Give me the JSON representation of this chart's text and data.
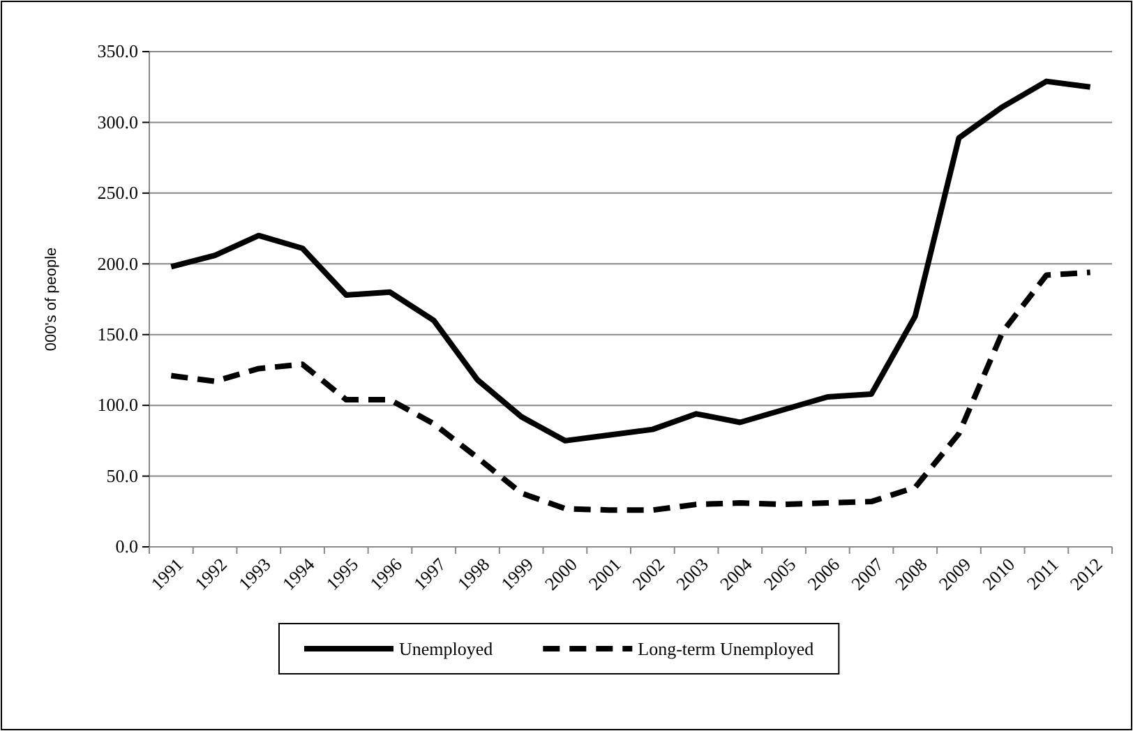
{
  "chart_data": {
    "type": "line",
    "ylabel": "000's of people",
    "categories": [
      "1991",
      "1992",
      "1993",
      "1994",
      "1995",
      "1996",
      "1997",
      "1998",
      "1999",
      "2000",
      "2001",
      "2002",
      "2003",
      "2004",
      "2005",
      "2006",
      "2007",
      "2008",
      "2009",
      "2010",
      "2011",
      "2012"
    ],
    "series": [
      {
        "name": "Unemployed",
        "color": "#000000",
        "line_style": "solid",
        "values": [
          198,
          206,
          220,
          211,
          178,
          180,
          160,
          118,
          92,
          75,
          79,
          83,
          94,
          88,
          97,
          106,
          108,
          163,
          289,
          311,
          329,
          325
        ]
      },
      {
        "name": "Long-term Unemployed",
        "color": "#000000",
        "line_style": "dashed",
        "values": [
          121,
          117,
          126,
          129,
          104,
          104,
          87,
          63,
          38,
          27,
          26,
          26,
          30,
          31,
          30,
          31,
          32,
          42,
          80,
          152,
          192,
          194
        ]
      }
    ],
    "ylim": [
      0,
      350
    ],
    "yticks": [
      {
        "value": 0,
        "label": "0.0"
      },
      {
        "value": 50,
        "label": "50.0"
      },
      {
        "value": 100,
        "label": "100.0"
      },
      {
        "value": 150,
        "label": "150.0"
      },
      {
        "value": 200,
        "label": "200.0"
      },
      {
        "value": 250,
        "label": "250.0"
      },
      {
        "value": 300,
        "label": "300.0"
      },
      {
        "value": 350,
        "label": "350.0"
      }
    ],
    "grid": "y",
    "legend": "bottom",
    "marker": "none"
  }
}
